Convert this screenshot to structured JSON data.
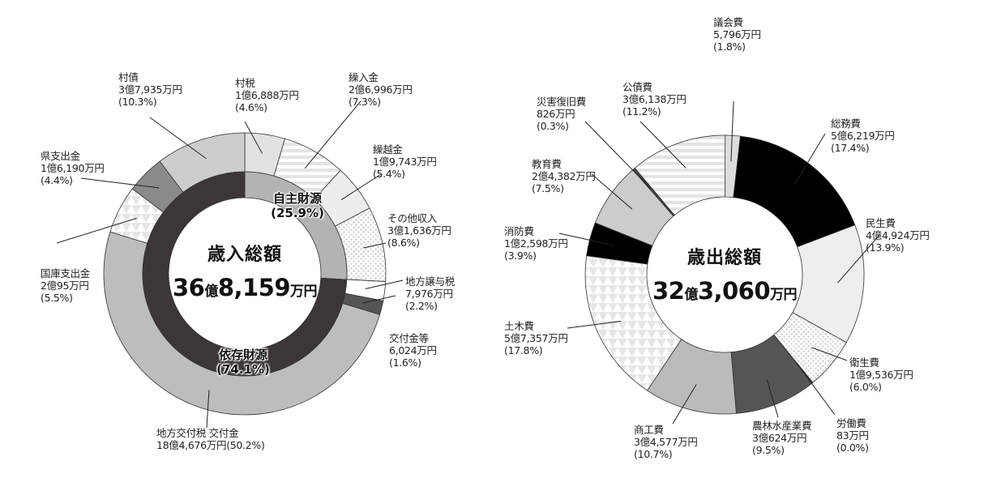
{
  "chart_data": [
    {
      "type": "pie",
      "title": "歳入総額",
      "total": {
        "num1": "36",
        "unit1": "億",
        "num2": "8,159",
        "unit2": "万円"
      },
      "inner_ring": [
        {
          "name": "自主財源",
          "percent": 25.9,
          "pct_label": "(25.9%)",
          "color": "#b3b3b3"
        },
        {
          "name": "依存財源",
          "percent": 74.1,
          "pct_label": "(74.1%)",
          "color": "#3b3737"
        }
      ],
      "segments": [
        {
          "name": "村税",
          "amount": "1億6,888万円",
          "pct_label": "(4.6%)",
          "percent": 4.6,
          "fill": "#e2e2e2"
        },
        {
          "name": "繰入金",
          "amount": "2億6,996万円",
          "pct_label": "(7.3%)",
          "percent": 7.3,
          "fill": "stripes"
        },
        {
          "name": "繰越金",
          "amount": "1億9,743万円",
          "pct_label": "(5.4%)",
          "percent": 5.4,
          "fill": "#ededed"
        },
        {
          "name": "その他収入",
          "amount": "3億1,636万円",
          "pct_label": "(8.6%)",
          "percent": 8.6,
          "fill": "dots"
        },
        {
          "name": "地方譲与税",
          "amount": "7,976万円",
          "pct_label": "(2.2%)",
          "percent": 2.2,
          "fill": "#ffffff"
        },
        {
          "name": "交付金等",
          "amount": "6,024万円",
          "pct_label": "(1.6%)",
          "percent": 1.6,
          "fill": "#555555"
        },
        {
          "name": "地方交付税 交付金",
          "amount": "18億4,676万円(50.2%)",
          "pct_label": "",
          "percent": 50.2,
          "fill": "#bdbdbd"
        },
        {
          "name": "国庫支出金",
          "amount": "2億95万円",
          "pct_label": "(5.5%)",
          "percent": 5.5,
          "fill": "triangles"
        },
        {
          "name": "県支出金",
          "amount": "1億6,190万円",
          "pct_label": "(4.4%)",
          "percent": 4.4,
          "fill": "#8a8a8a"
        },
        {
          "name": "村債",
          "amount": "3億7,935万円",
          "pct_label": "(10.3%)",
          "percent": 10.3,
          "fill": "#cdcdcd"
        }
      ]
    },
    {
      "type": "pie",
      "title": "歳出総額",
      "total": {
        "num1": "32",
        "unit1": "億",
        "num2": "3,060",
        "unit2": "万円"
      },
      "segments": [
        {
          "name": "議会費",
          "amount": "5,796万円",
          "pct_label": "(1.8%)",
          "percent": 1.8,
          "fill": "#dddddd"
        },
        {
          "name": "総務費",
          "amount": "5億6,219万円",
          "pct_label": "(17.4%)",
          "percent": 17.4,
          "fill": "#000000"
        },
        {
          "name": "民生費",
          "amount": "4億4,924万円",
          "pct_label": "(13.9%)",
          "percent": 13.9,
          "fill": "#eeeeee"
        },
        {
          "name": "衛生費",
          "amount": "1億9,536万円",
          "pct_label": "(6.0%)",
          "percent": 6.0,
          "fill": "dots"
        },
        {
          "name": "労働費",
          "amount": "83万円",
          "pct_label": "(0.0%)",
          "percent": 0.0,
          "fill": "#000000"
        },
        {
          "name": "農林水産業費",
          "amount": "3億624万円",
          "pct_label": "(9.5%)",
          "percent": 9.5,
          "fill": "#555555"
        },
        {
          "name": "商工費",
          "amount": "3億4,577万円",
          "pct_label": "(10.7%)",
          "percent": 10.7,
          "fill": "#bbbbbb"
        },
        {
          "name": "土木費",
          "amount": "5億7,357万円",
          "pct_label": "(17.8%)",
          "percent": 17.8,
          "fill": "triangles"
        },
        {
          "name": "消防費",
          "amount": "1億2,598万円",
          "pct_label": "(3.9%)",
          "percent": 3.9,
          "fill": "#000000"
        },
        {
          "name": "教育費",
          "amount": "2億4,382万円",
          "pct_label": "(7.5%)",
          "percent": 7.5,
          "fill": "#cccccc"
        },
        {
          "name": "災害復旧費",
          "amount": "826万円",
          "pct_label": "(0.3%)",
          "percent": 0.3,
          "fill": "#444444"
        },
        {
          "name": "公債費",
          "amount": "3億6,138万円",
          "pct_label": "(11.2%)",
          "percent": 11.2,
          "fill": "stripes"
        }
      ]
    }
  ]
}
